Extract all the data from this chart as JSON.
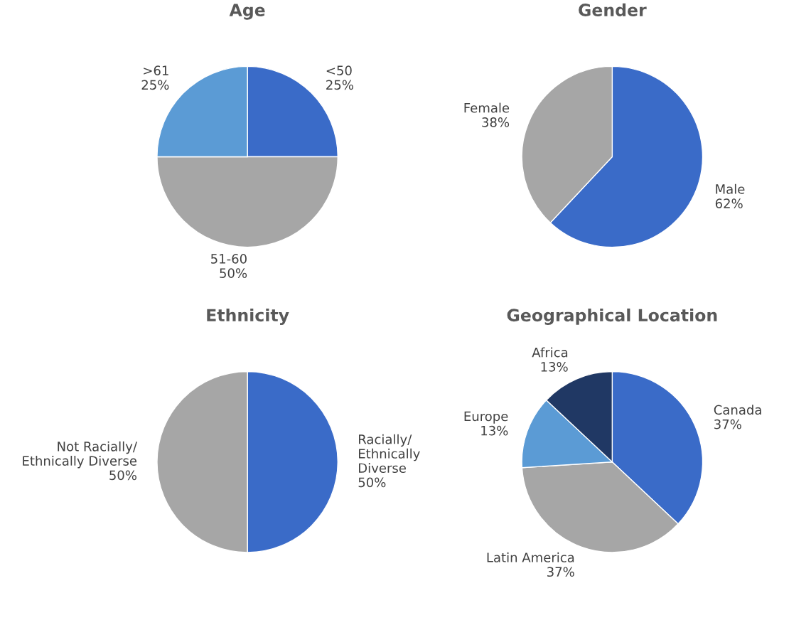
{
  "chart_data": [
    {
      "type": "pie",
      "title": "Age",
      "categories": [
        "<50",
        "51-60",
        ">61"
      ],
      "values": [
        25,
        50,
        25
      ],
      "value_labels": [
        "25%",
        "50%",
        "25%"
      ],
      "colors": [
        "#3a6bc8",
        "#a6a6a6",
        "#5b9bd5"
      ]
    },
    {
      "type": "pie",
      "title": "Gender",
      "categories": [
        "Male",
        "Female"
      ],
      "values": [
        62,
        38
      ],
      "value_labels": [
        "62%",
        "38%"
      ],
      "colors": [
        "#3a6bc8",
        "#a6a6a6"
      ]
    },
    {
      "type": "pie",
      "title": "Ethnicity",
      "categories": [
        "Racially/\nEthnically\nDiverse",
        "Not Racially/\nEthnically Diverse"
      ],
      "values": [
        50,
        50
      ],
      "value_labels": [
        "50%",
        "50%"
      ],
      "colors": [
        "#3a6bc8",
        "#a6a6a6"
      ]
    },
    {
      "type": "pie",
      "title": "Geographical Location",
      "categories": [
        "Canada",
        "Latin America",
        "Europe",
        "Africa"
      ],
      "values": [
        37,
        37,
        13,
        13
      ],
      "value_labels": [
        "37%",
        "37%",
        "13%",
        "13%"
      ],
      "colors": [
        "#3a6bc8",
        "#a6a6a6",
        "#5b9bd5",
        "#203864"
      ]
    }
  ]
}
